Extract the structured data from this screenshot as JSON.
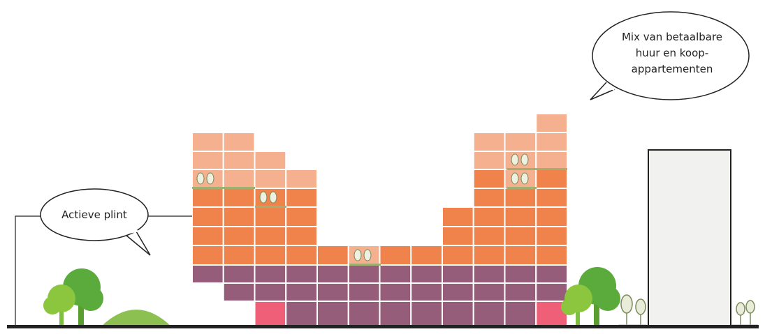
{
  "callouts": [
    {
      "text": "Actieve plint"
    },
    {
      "lines": [
        "Mix van betaalbare",
        "huur en koop-",
        "appartementen"
      ]
    }
  ]
}
